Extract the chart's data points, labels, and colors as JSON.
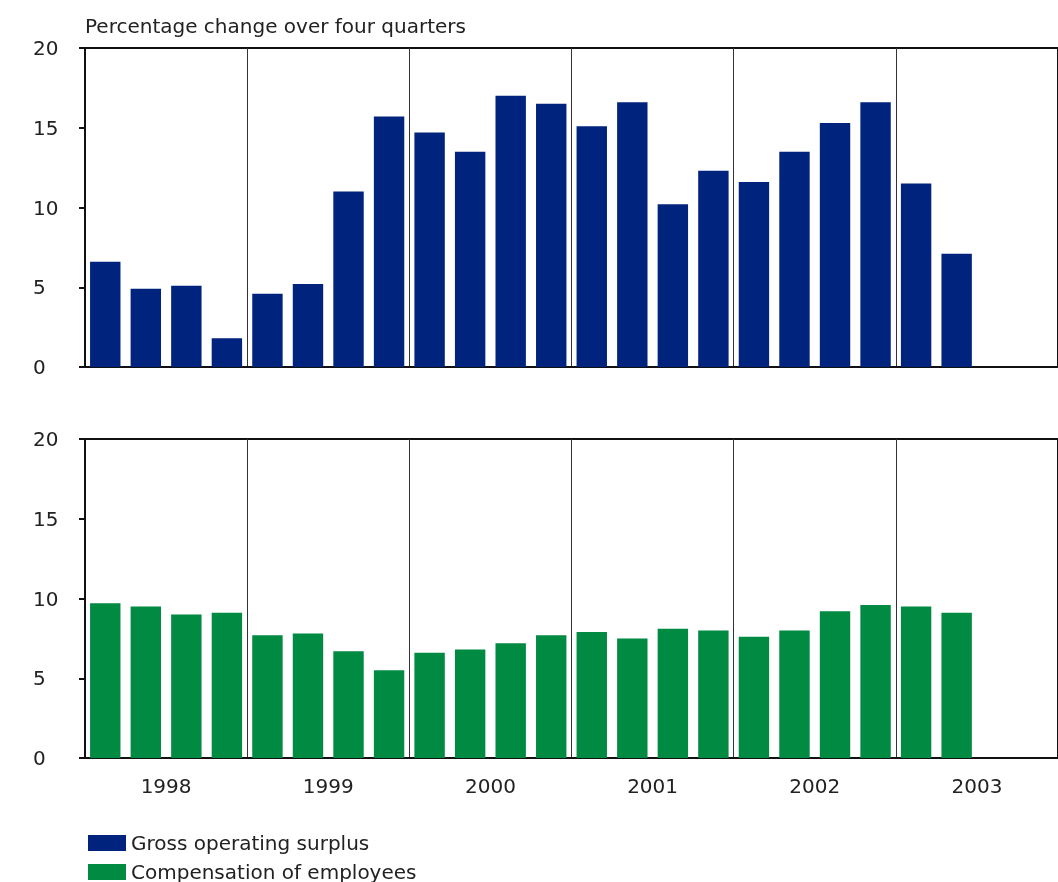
{
  "chart_data": [
    {
      "type": "bar",
      "ylabel": "Percentage change over four quarters",
      "categories": [
        null,
        "1998",
        null,
        null,
        null,
        "1999",
        null,
        null,
        null,
        "2000",
        null,
        null,
        null,
        "2001",
        null,
        null,
        null,
        "2002",
        null,
        null,
        null,
        "2003",
        null,
        null
      ],
      "series": [
        {
          "name": "Gross operating surplus",
          "color": "#00237d",
          "values": [
            6.6,
            4.9,
            5.1,
            1.8,
            4.6,
            5.2,
            11.0,
            15.7,
            14.7,
            13.5,
            17.0,
            16.5,
            15.1,
            16.6,
            10.2,
            12.3,
            11.6,
            13.5,
            15.3,
            16.6,
            11.5,
            7.1,
            null,
            null
          ]
        }
      ],
      "ylim": [
        0,
        20
      ],
      "yticks": [
        0,
        5,
        10,
        15,
        20
      ],
      "grid": "x",
      "legend": "bottom left",
      "tick_labels": "y"
    },
    {
      "type": "bar",
      "categories": [
        null,
        "1998",
        null,
        null,
        null,
        "1999",
        null,
        null,
        null,
        "2000",
        null,
        null,
        null,
        "2001",
        null,
        null,
        null,
        "2002",
        null,
        null,
        null,
        "2003",
        null,
        null
      ],
      "series": [
        {
          "name": "Compensation of employees",
          "color": "#008a42",
          "values": [
            9.7,
            9.5,
            9.0,
            9.1,
            7.7,
            7.8,
            6.7,
            5.5,
            6.6,
            6.8,
            7.2,
            7.7,
            7.9,
            7.5,
            8.1,
            8.0,
            7.6,
            8.0,
            9.2,
            9.6,
            9.5,
            9.1,
            null,
            null
          ]
        }
      ],
      "ylim": [
        0,
        20
      ],
      "yticks": [
        0,
        5,
        10,
        15,
        20
      ],
      "grid": "x",
      "legend": "bottom left"
    }
  ]
}
